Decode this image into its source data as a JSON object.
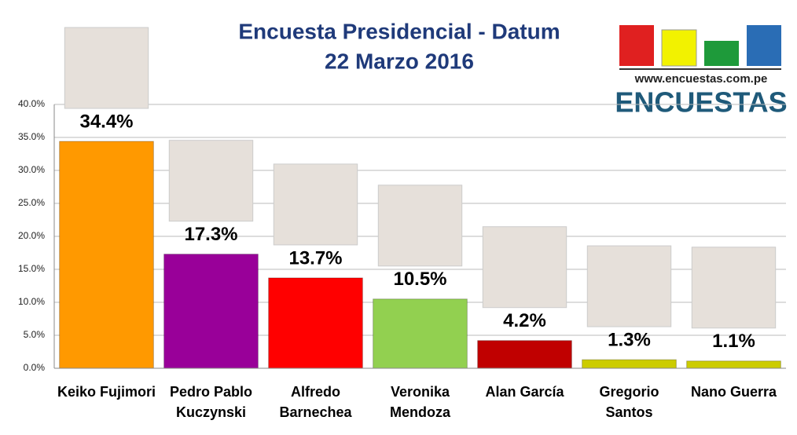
{
  "chart_data": {
    "type": "bar",
    "title": "Encuesta Presidencial - Datum",
    "subtitle": "22 Marzo 2016",
    "logo": {
      "url": "www.encuestas.com.pe",
      "name": "ENCUESTAS"
    },
    "categories": [
      "Keiko Fujimori",
      "Pedro Pablo Kuczynski",
      "Alfredo Barnechea",
      "Veronika Mendoza",
      "Alan García",
      "Gregorio Santos",
      "Nano Guerra"
    ],
    "values": [
      34.4,
      17.3,
      13.7,
      10.5,
      4.2,
      1.3,
      1.1
    ],
    "value_labels": [
      "34.4%",
      "17.3%",
      "13.7%",
      "10.5%",
      "4.2%",
      "1.3%",
      "1.1%"
    ],
    "colors": [
      "#ff9900",
      "#990099",
      "#ff0000",
      "#92d050",
      "#c00000",
      "#cccc00",
      "#cccc00"
    ],
    "ylim": [
      0,
      40
    ],
    "yticks": [
      {
        "value": 0,
        "label": "0.0%"
      },
      {
        "value": 5,
        "label": "5.0%"
      },
      {
        "value": 10,
        "label": "10.0%"
      },
      {
        "value": 15,
        "label": "15.0%"
      },
      {
        "value": 20,
        "label": "20.0%"
      },
      {
        "value": 25,
        "label": "25.0%"
      },
      {
        "value": 30,
        "label": "30.0%"
      },
      {
        "value": 35,
        "label": "35.0%"
      },
      {
        "value": 40,
        "label": "40.0%"
      }
    ],
    "grid": true
  }
}
